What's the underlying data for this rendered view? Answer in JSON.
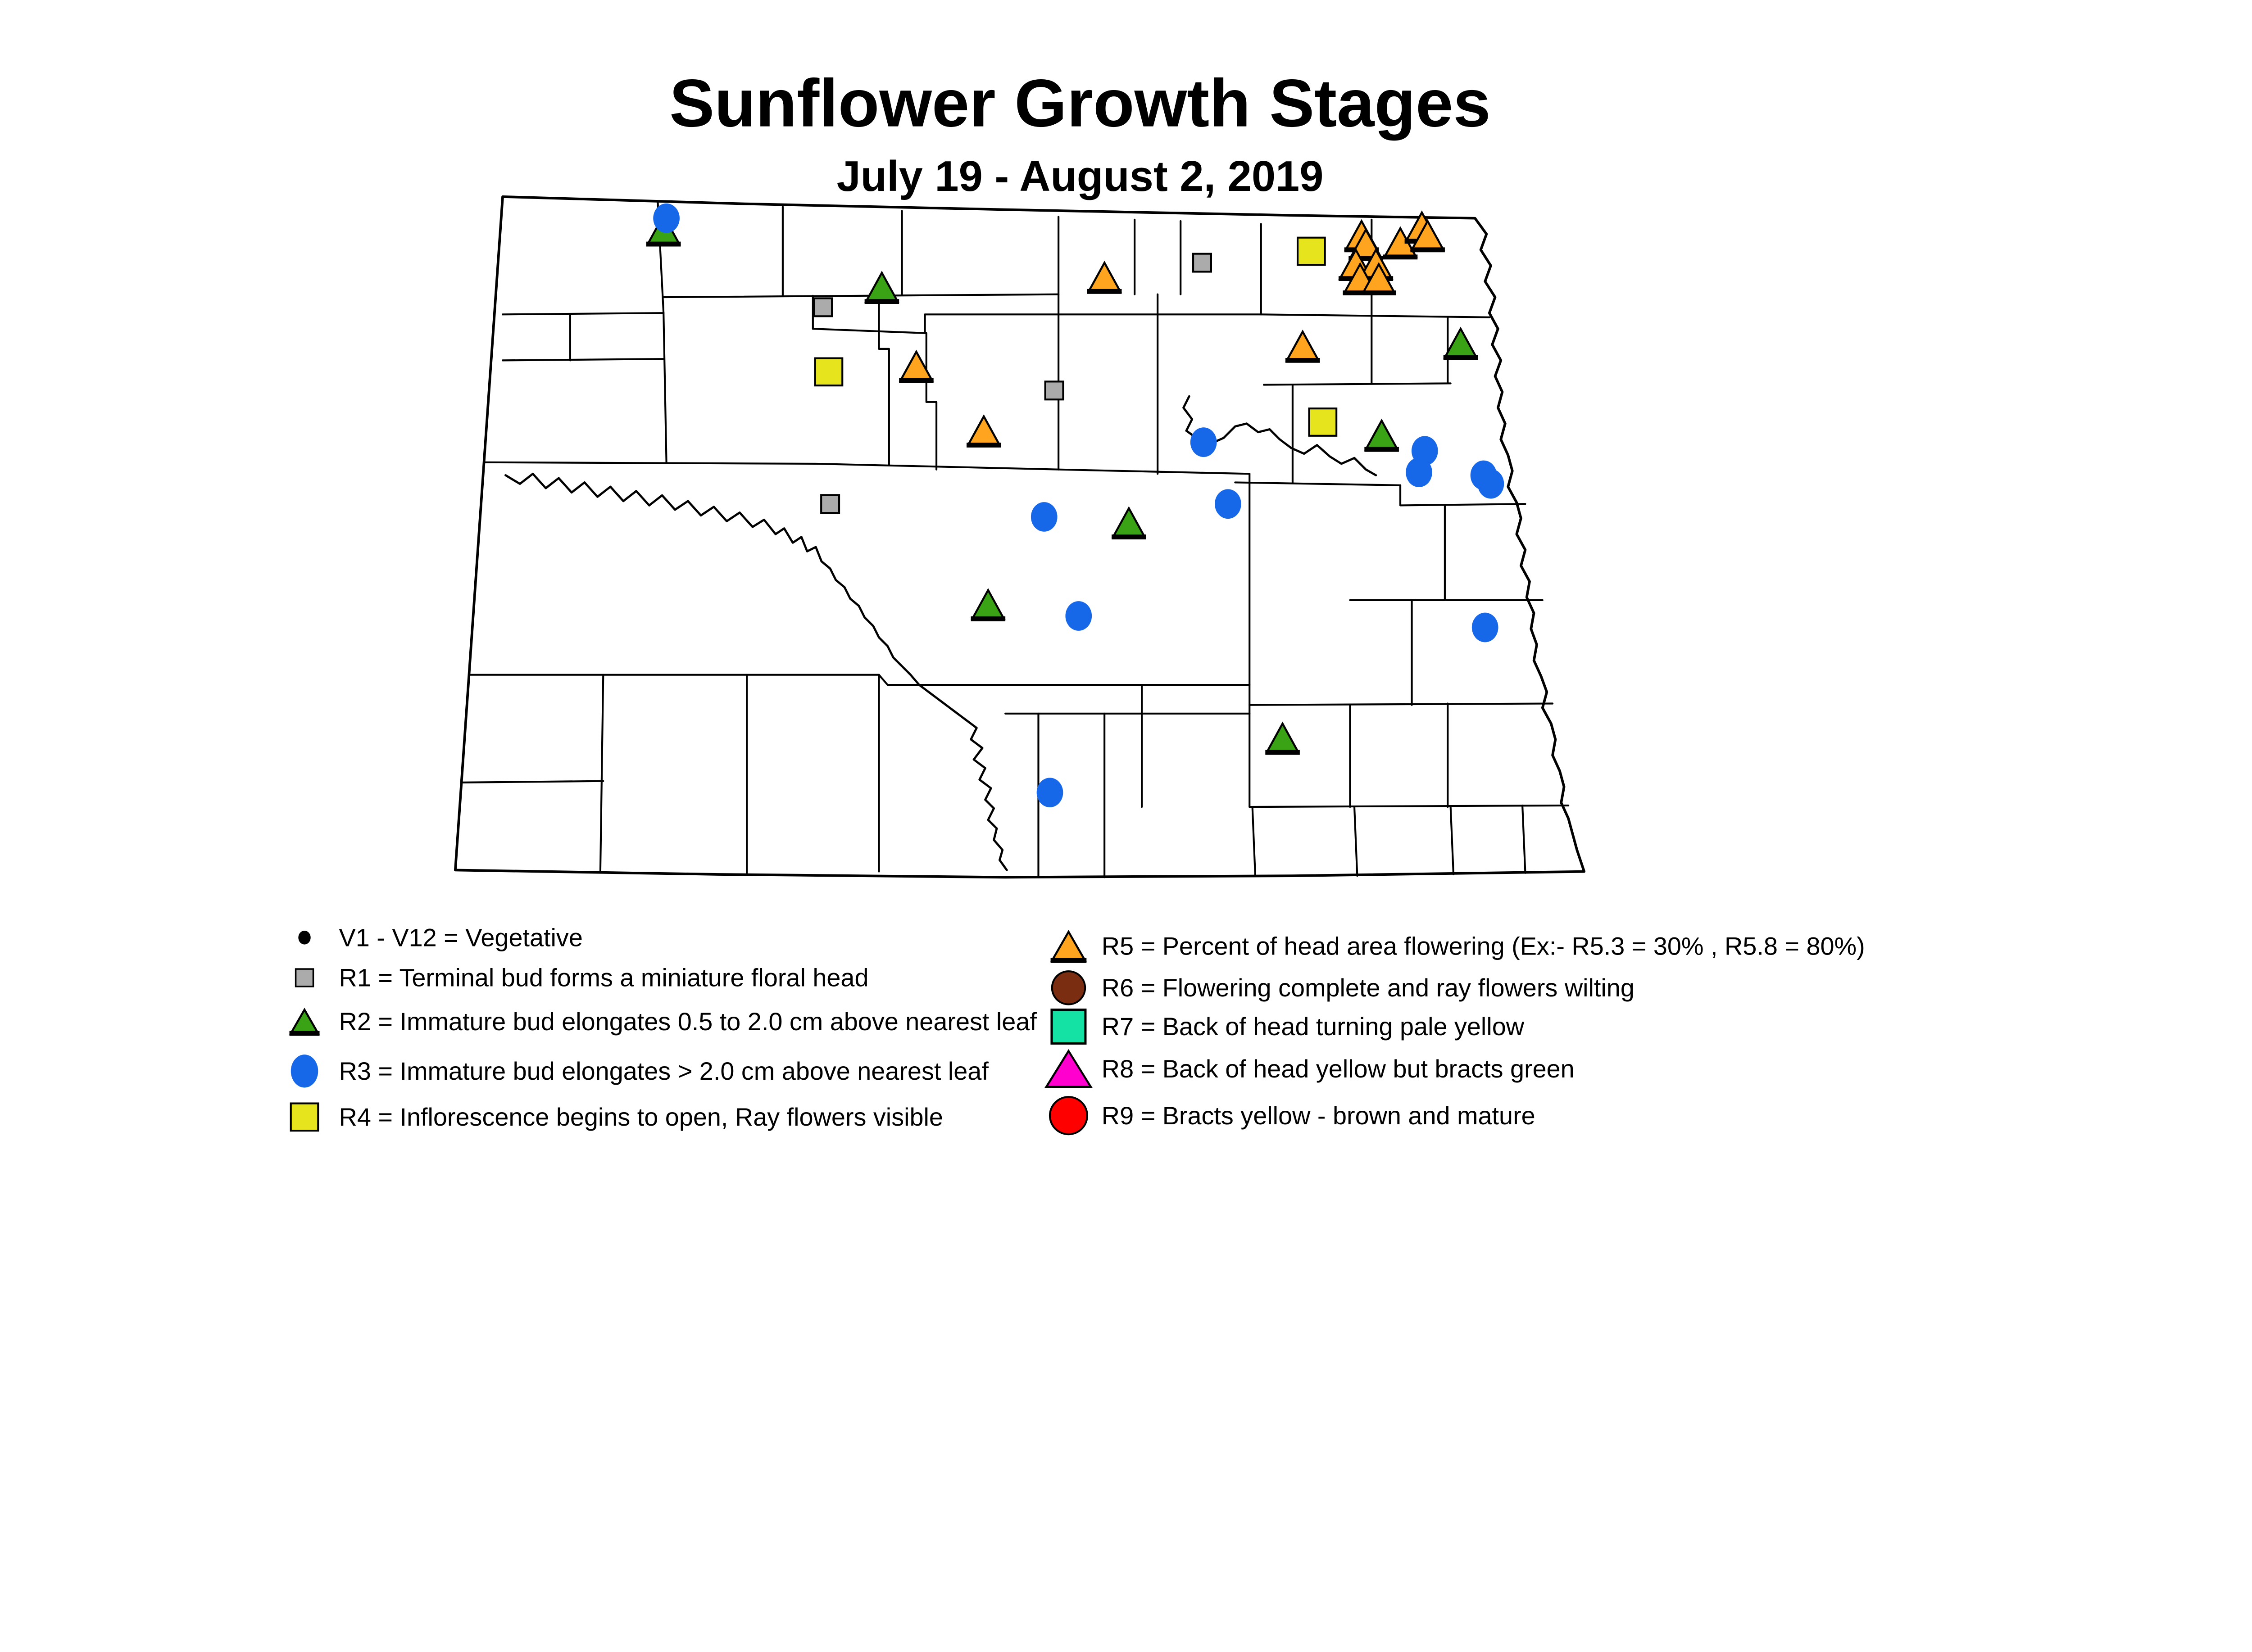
{
  "title": "Sunflower Growth Stages",
  "subtitle": "July 19 - August 2, 2019",
  "colors": {
    "V": "#000000",
    "R1": "#ABABAB",
    "R2": "#3AA315",
    "R3": "#1768E8",
    "R4": "#E6E41C",
    "R5": "#FFA41E",
    "R6": "#7B2D12",
    "R7": "#13E2A4",
    "R8": "#FF00CE",
    "R9": "#FF0000",
    "outline": "#000000"
  },
  "legend": {
    "left": [
      {
        "stage": "V",
        "shape": "dot",
        "label": "V1 - V12 = Vegetative"
      },
      {
        "stage": "R1",
        "shape": "square",
        "label": "R1 = Terminal bud forms a miniature floral head"
      },
      {
        "stage": "R2",
        "shape": "triangle",
        "label": "R2 = Immature bud elongates 0.5 to 2.0 cm above nearest leaf"
      },
      {
        "stage": "R3",
        "shape": "circle",
        "label": "R3 = Immature bud elongates > 2.0 cm above nearest leaf"
      },
      {
        "stage": "R4",
        "shape": "square",
        "label": "R4 = Inflorescence begins to open, Ray flowers visible"
      }
    ],
    "right": [
      {
        "stage": "R5",
        "shape": "triangle",
        "label": "R5 = Percent of head area flowering (Ex:- R5.3 = 30% , R5.8 = 80%)"
      },
      {
        "stage": "R6",
        "shape": "circle",
        "label": "R6 = Flowering complete and ray flowers wilting"
      },
      {
        "stage": "R7",
        "shape": "square",
        "label": "R7 = Back of head turning pale yellow"
      },
      {
        "stage": "R8",
        "shape": "triangle",
        "label": "R8 = Back of head yellow but bracts green"
      },
      {
        "stage": "R9",
        "shape": "circle",
        "label": "R9 = Bracts yellow - brown and mature"
      }
    ]
  },
  "map_points": {
    "R1": [
      [
        573,
        214
      ],
      [
        837,
        183
      ],
      [
        734,
        272
      ],
      [
        578,
        351
      ]
    ],
    "R2": [
      [
        462,
        160
      ],
      [
        614,
        200
      ],
      [
        1017,
        239
      ],
      [
        962,
        303
      ],
      [
        786,
        364
      ],
      [
        688,
        421
      ],
      [
        893,
        514
      ]
    ],
    "R4": [
      [
        913,
        175
      ],
      [
        577,
        259
      ],
      [
        921,
        294
      ]
    ],
    "R5": [
      [
        769,
        193
      ],
      [
        907,
        241
      ],
      [
        638,
        255
      ],
      [
        685,
        300
      ],
      [
        948,
        164
      ],
      [
        951,
        170
      ],
      [
        944,
        184
      ],
      [
        958,
        184
      ],
      [
        947,
        194
      ],
      [
        960,
        194
      ],
      [
        975,
        169
      ],
      [
        990,
        158
      ],
      [
        994,
        164
      ]
    ],
    "R3": [
      [
        464,
        152
      ],
      [
        838,
        308
      ],
      [
        855,
        351
      ],
      [
        727,
        360
      ],
      [
        992,
        314
      ],
      [
        988,
        329
      ],
      [
        1033,
        331
      ],
      [
        1038,
        337
      ],
      [
        751,
        429
      ],
      [
        1034,
        437
      ],
      [
        731,
        552
      ]
    ]
  }
}
